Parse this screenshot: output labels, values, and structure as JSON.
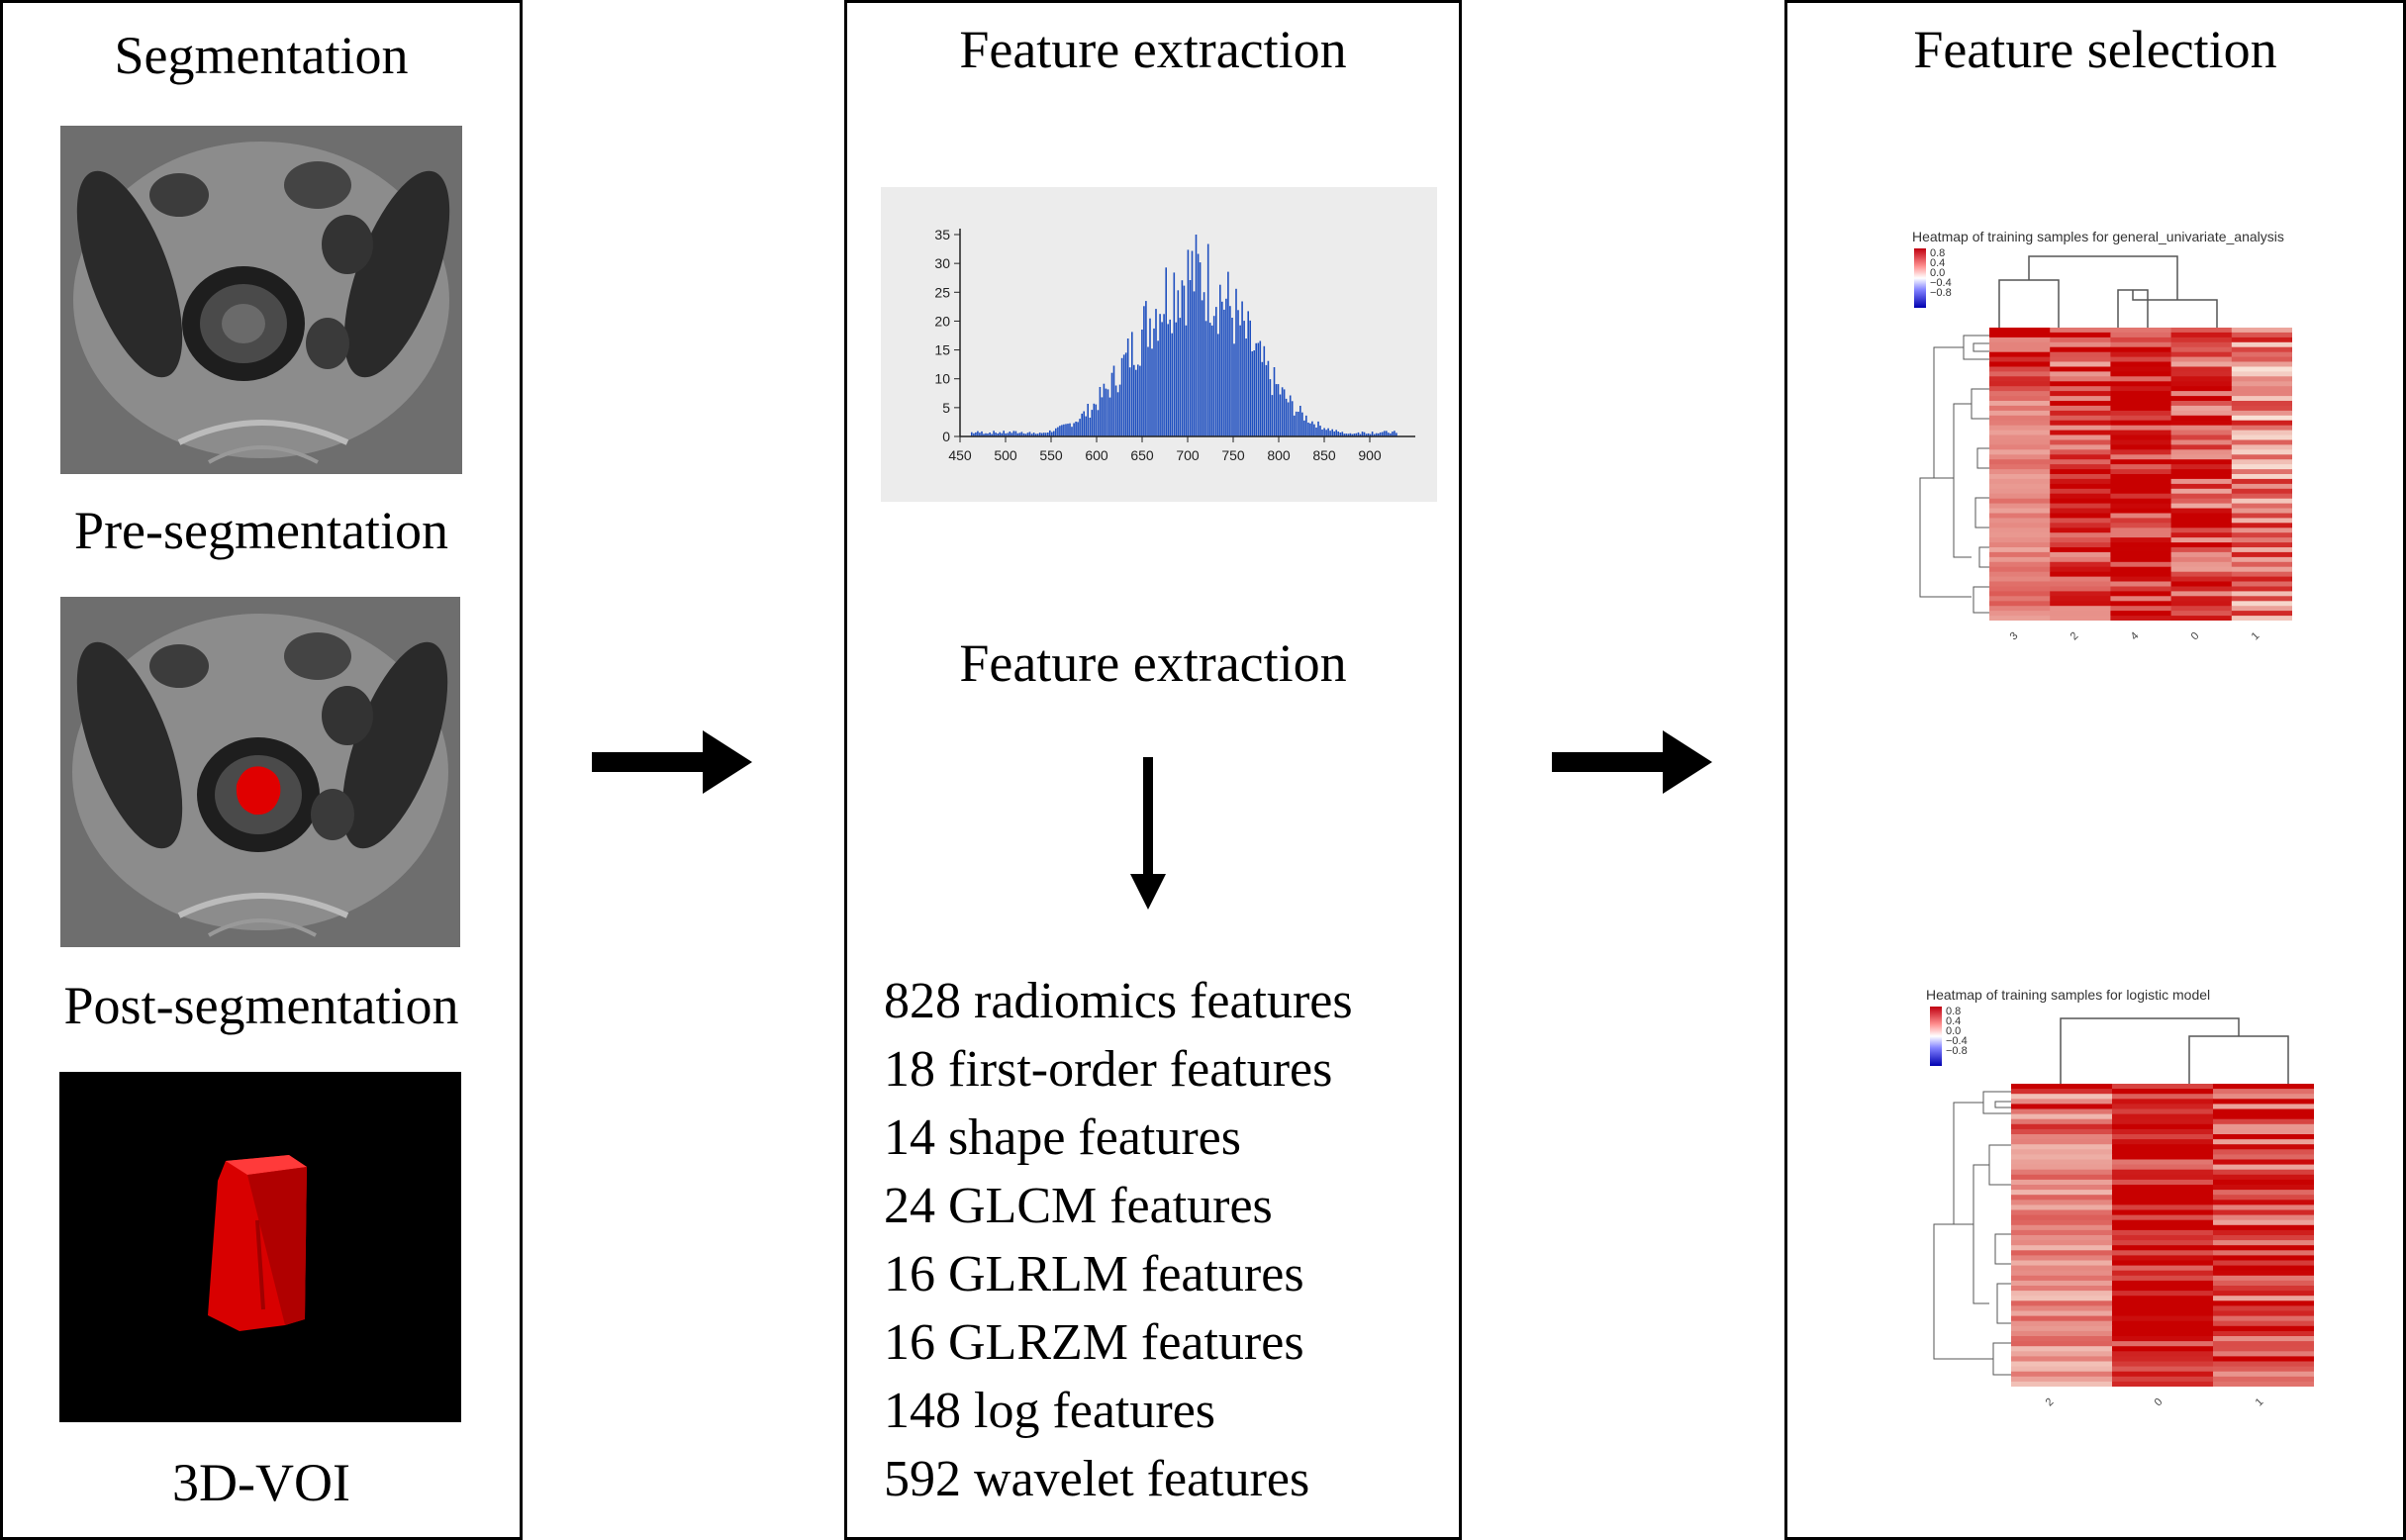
{
  "panels": {
    "segmentation": {
      "title": "Segmentation",
      "label_pre": "Pre-segmentation",
      "label_post": "Post-segmentation",
      "label_voi": "3D-VOI"
    },
    "extraction": {
      "title": "Feature extraction",
      "subtitle": "Feature extraction",
      "features": [
        "828 radiomics features",
        "18 first-order features",
        "14 shape features",
        "24 GLCM features",
        "16 GLRLM features",
        "16 GLRZM features",
        "148 log features",
        "592 wavelet features"
      ]
    },
    "selection": {
      "title": "Feature selection",
      "heatmap1_title": "Heatmap of training samples for general_univariate_analysis",
      "heatmap2_title": "Heatmap of training samples for logistic model",
      "legend": [
        "0.8",
        "0.4",
        "0.0",
        "−0.4",
        "−0.8"
      ],
      "heatmap1_cols": [
        "3",
        "2",
        "4",
        "0",
        "1"
      ],
      "heatmap2_cols": [
        "2",
        "0",
        "1"
      ]
    }
  },
  "colors": {
    "bar": "#1f4fbf",
    "heat_high": "#c8000a",
    "heat_low": "#ffffff",
    "voi": "#e80000"
  },
  "chart_data": {
    "type": "bar",
    "title": "",
    "xlabel": "",
    "ylabel": "",
    "xlim": [
      450,
      950
    ],
    "ylim": [
      0,
      35
    ],
    "xticks": [
      450,
      500,
      550,
      600,
      650,
      700,
      750,
      800,
      850,
      900
    ],
    "yticks": [
      0,
      5,
      10,
      15,
      20,
      25,
      30,
      35
    ],
    "distribution": {
      "center": 705,
      "peak_count": 35,
      "spread": 60
    }
  }
}
